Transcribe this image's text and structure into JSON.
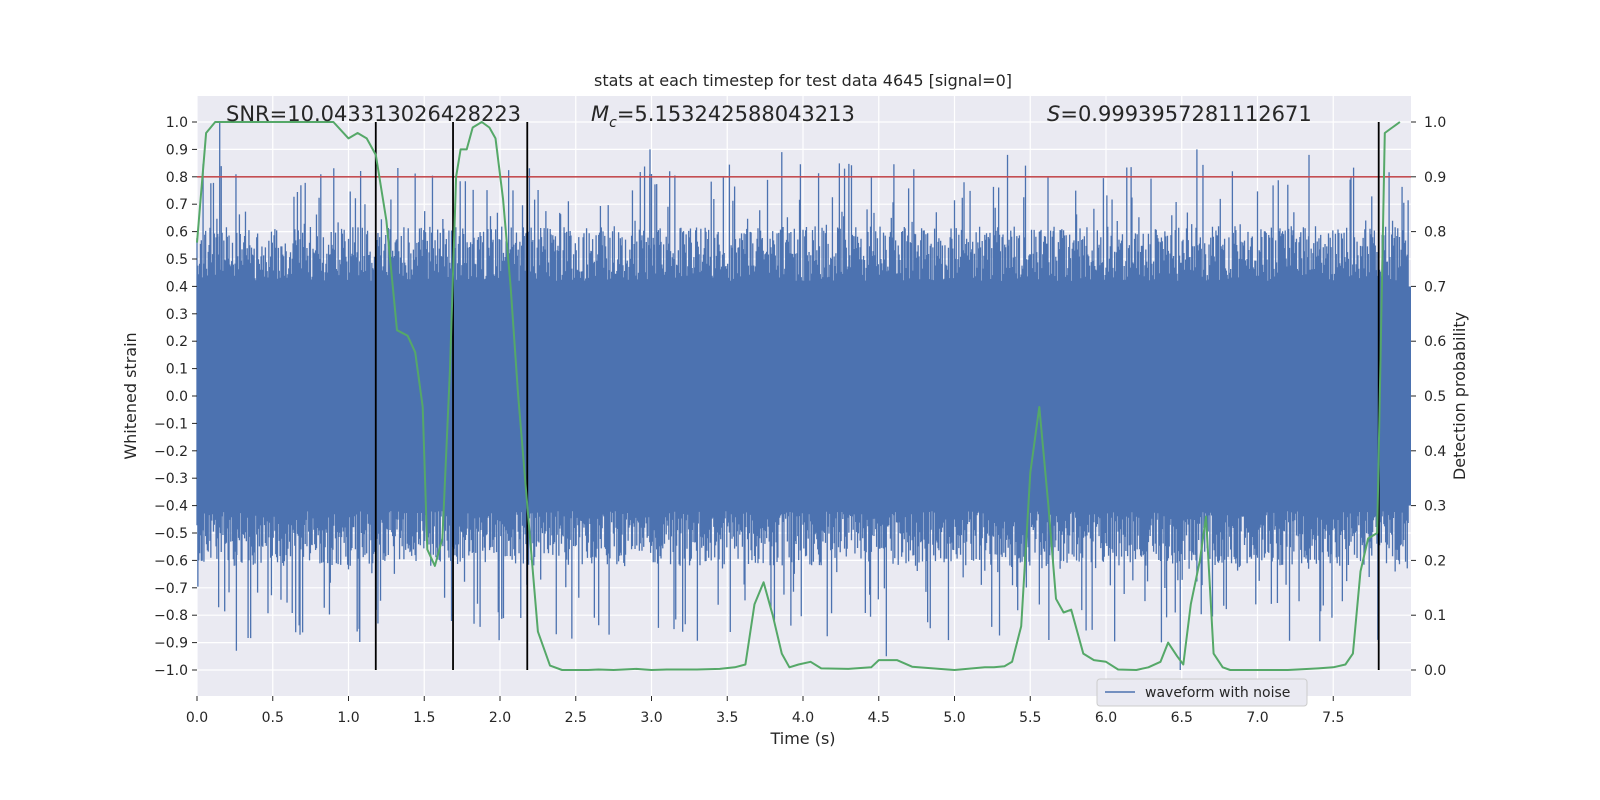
{
  "chart_data": {
    "type": "line",
    "title": "stats at each timestep for test data 4645 [signal=0]",
    "xlabel": "Time (s)",
    "ylabel": "Whitened strain",
    "y2label": "Detection probability",
    "xlim": [
      0.0,
      8.0
    ],
    "ylim": [
      -1.1,
      1.1
    ],
    "y2lim": [
      -0.05,
      1.05
    ],
    "xticks": [
      "0.0",
      "0.5",
      "1.0",
      "1.5",
      "2.0",
      "2.5",
      "3.0",
      "3.5",
      "4.0",
      "4.5",
      "5.0",
      "5.5",
      "6.0",
      "6.5",
      "7.0",
      "7.5"
    ],
    "yticks": [
      "1.0",
      "0.9",
      "0.8",
      "0.7",
      "0.6",
      "0.5",
      "0.4",
      "0.3",
      "0.2",
      "0.1",
      "0.0",
      "−0.1",
      "−0.2",
      "−0.3",
      "−0.4",
      "−0.5",
      "−0.6",
      "−0.7",
      "−0.8",
      "−0.9",
      "−1.0"
    ],
    "y2ticks": [
      "1.0",
      "0.9",
      "0.8",
      "0.7",
      "0.6",
      "0.5",
      "0.4",
      "0.3",
      "0.2",
      "0.1",
      "0.0"
    ],
    "annotations": {
      "snr": "SNR=10.043313026428223",
      "mc_symbol": "M",
      "mc_sub": "c",
      "mc_value": "=5.153242588043213",
      "s_symbol": "S",
      "s_value": "=0.9993957281112671"
    },
    "threshold": {
      "value": 0.8,
      "color": "#c44e52",
      "axis": "left"
    },
    "vertical_lines": [
      1.18,
      1.69,
      2.18,
      7.8
    ],
    "series": [
      {
        "name": "waveform with noise",
        "color": "#4c72b0",
        "axis": "left",
        "kind": "noise",
        "core_amplitude": 0.4,
        "peak_range": [
          -1.0,
          1.0
        ],
        "samples": 1400,
        "notable_peaks": [
          [
            0.15,
            1.0
          ],
          [
            0.26,
            -0.93
          ],
          [
            1.07,
            -0.85
          ],
          [
            2.99,
            0.9
          ],
          [
            3.86,
            0.89
          ],
          [
            4.55,
            -0.95
          ],
          [
            5.35,
            0.88
          ],
          [
            6.49,
            -1.0
          ],
          [
            6.6,
            0.9
          ],
          [
            7.34,
            0.88
          ]
        ]
      },
      {
        "name": "detection probability",
        "color": "#55a868",
        "axis": "right",
        "x": [
          0.0,
          0.06,
          0.12,
          0.18,
          0.9,
          1.0,
          1.06,
          1.12,
          1.18,
          1.25,
          1.32,
          1.39,
          1.44,
          1.49,
          1.52,
          1.57,
          1.62,
          1.67,
          1.71,
          1.74,
          1.78,
          1.82,
          1.88,
          1.93,
          1.97,
          2.02,
          2.07,
          2.12,
          2.18,
          2.25,
          2.33,
          2.41,
          2.47,
          2.52,
          2.58,
          2.65,
          2.75,
          2.9,
          3.0,
          3.1,
          3.3,
          3.45,
          3.55,
          3.62,
          3.68,
          3.74,
          3.8,
          3.86,
          3.91,
          3.97,
          4.05,
          4.12,
          4.3,
          4.45,
          4.5,
          4.62,
          4.72,
          4.9,
          5.0,
          5.2,
          5.26,
          5.33,
          5.38,
          5.44,
          5.5,
          5.56,
          5.62,
          5.67,
          5.72,
          5.77,
          5.85,
          5.92,
          6.0,
          6.08,
          6.2,
          6.28,
          6.36,
          6.41,
          6.47,
          6.51,
          6.56,
          6.62,
          6.66,
          6.71,
          6.77,
          6.82,
          6.87,
          7.0,
          7.2,
          7.4,
          7.5,
          7.58,
          7.63,
          7.68,
          7.73,
          7.79,
          7.84,
          7.89,
          7.94
        ],
        "values": [
          0.78,
          0.98,
          1.0,
          1.0,
          1.0,
          0.97,
          0.98,
          0.97,
          0.94,
          0.82,
          0.62,
          0.61,
          0.58,
          0.48,
          0.22,
          0.19,
          0.24,
          0.55,
          0.9,
          0.95,
          0.95,
          0.99,
          1.0,
          0.99,
          0.97,
          0.86,
          0.7,
          0.5,
          0.3,
          0.07,
          0.008,
          0.0,
          0.0,
          0.0,
          0.0,
          0.001,
          0.0,
          0.002,
          0.0,
          0.001,
          0.001,
          0.002,
          0.005,
          0.01,
          0.12,
          0.16,
          0.1,
          0.03,
          0.005,
          0.01,
          0.015,
          0.003,
          0.002,
          0.005,
          0.018,
          0.018,
          0.006,
          0.002,
          0.0,
          0.005,
          0.005,
          0.007,
          0.015,
          0.08,
          0.36,
          0.48,
          0.3,
          0.13,
          0.105,
          0.11,
          0.03,
          0.018,
          0.015,
          0.001,
          0.0,
          0.005,
          0.015,
          0.05,
          0.025,
          0.01,
          0.12,
          0.2,
          0.28,
          0.03,
          0.005,
          0.0,
          0.0,
          0.0,
          0.0,
          0.003,
          0.005,
          0.01,
          0.03,
          0.18,
          0.24,
          0.25,
          0.98,
          0.99,
          1.0
        ]
      }
    ],
    "legend": {
      "label": "waveform with noise",
      "placement": "bottom-right"
    },
    "grid": true,
    "colors": {
      "background": "#eaeaf2",
      "grid": "#ffffff",
      "vline": "#000000"
    }
  }
}
